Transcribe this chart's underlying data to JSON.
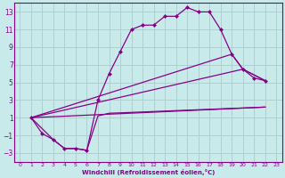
{
  "xlabel": "Windchill (Refroidissement éolien,°C)",
  "background_color": "#c8eaea",
  "grid_color": "#b0d0d0",
  "line_color": "#880088",
  "xlim": [
    -0.5,
    23.5
  ],
  "ylim": [
    -4,
    14
  ],
  "xticks": [
    0,
    1,
    2,
    3,
    4,
    5,
    6,
    7,
    8,
    9,
    10,
    11,
    12,
    13,
    14,
    15,
    16,
    17,
    18,
    19,
    20,
    21,
    22,
    23
  ],
  "yticks": [
    -3,
    -1,
    1,
    3,
    5,
    7,
    9,
    11,
    13
  ],
  "line1_x": [
    1,
    2,
    3,
    4,
    5,
    6,
    7,
    8,
    9,
    10,
    11,
    12,
    13,
    14,
    15,
    16,
    17,
    18,
    19,
    20,
    21,
    22
  ],
  "line1_y": [
    1,
    -0.8,
    -1.5,
    -2.5,
    -2.5,
    -2.7,
    3,
    6,
    8.5,
    11,
    11.5,
    11.5,
    12.5,
    12.5,
    13.5,
    13,
    13,
    11,
    8.2,
    6.5,
    5.5,
    5.2
  ],
  "line2_x": [
    1,
    19,
    20,
    22
  ],
  "line2_y": [
    1,
    8.2,
    6.5,
    5.2
  ],
  "line3_x": [
    1,
    20,
    22
  ],
  "line3_y": [
    1,
    6.5,
    5.2
  ],
  "line4_x": [
    1,
    22
  ],
  "line4_y": [
    1,
    2.2
  ],
  "line5_x": [
    1,
    3,
    4,
    5,
    6,
    7,
    8,
    22
  ],
  "line5_y": [
    1,
    -1.5,
    -2.5,
    -2.5,
    -2.7,
    1.2,
    1.5,
    2.2
  ]
}
